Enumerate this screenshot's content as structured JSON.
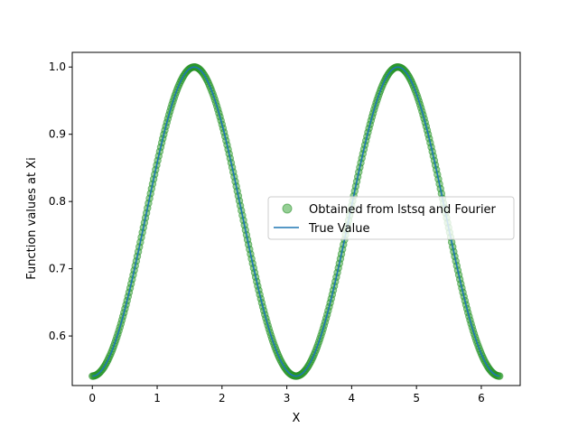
{
  "chart_data": {
    "type": "line",
    "title": "",
    "xlabel": "X",
    "ylabel": "Function values at Xi",
    "xlim": [
      -0.31,
      6.6
    ],
    "ylim": [
      0.5263,
      1.0218
    ],
    "x_ticks": [
      0,
      1,
      2,
      3,
      4,
      5,
      6
    ],
    "y_ticks": [
      0.6,
      0.7,
      0.8,
      0.9,
      1.0
    ],
    "x_tick_labels": [
      "0",
      "1",
      "2",
      "3",
      "4",
      "5",
      "6"
    ],
    "y_tick_labels": [
      "0.6",
      "0.7",
      "0.8",
      "0.9",
      "1.0"
    ],
    "grid": false,
    "legend_position": "center-right",
    "function_samples": {
      "x_start": 0,
      "x_end": 6.2832,
      "count": 400,
      "formula": "cos(cos(x))"
    },
    "series": [
      {
        "name": "Obtained from lstsq and Fourier",
        "style": "markers",
        "color": "#2ca02c",
        "marker_alpha": 0.5,
        "marker_edge_color": "#228b22"
      },
      {
        "name": "True Value",
        "style": "line",
        "color": "#1f77b4"
      }
    ]
  }
}
